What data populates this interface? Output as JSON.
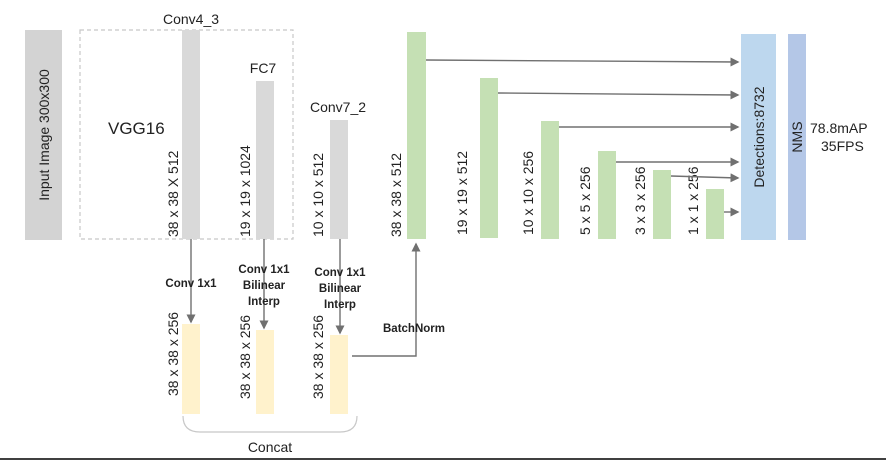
{
  "colors": {
    "gray_block": "#d3d3d3",
    "gray_bar": "#d9d9d9",
    "green": "#c5e0b4",
    "yellow": "#fff2cc",
    "blue": "#bdd7ee",
    "blue_nms": "#b4c7e7",
    "arrow": "#707070",
    "dashed": "#c8c8c8"
  },
  "input": {
    "label": "Input Image 300x300"
  },
  "backbone": {
    "name": "VGG16",
    "layers": [
      {
        "title": "Conv4_3",
        "dims": "38 x 38 X 512"
      },
      {
        "title": "FC7",
        "dims": "19 x 19  x 1024"
      },
      {
        "title": "Conv7_2",
        "dims": "10 x 10 x 512"
      }
    ]
  },
  "ops": [
    [
      "Conv 1x1"
    ],
    [
      "Conv 1x1",
      "Bilinear",
      "Interp"
    ],
    [
      "Conv 1x1",
      "Bilinear",
      "Interp"
    ]
  ],
  "fusion": {
    "dims": [
      "38 x 38 x 256",
      "38 x 38 x 256",
      "38 x 38 x 256"
    ],
    "concat_label": "Concat",
    "batchnorm_label": "BatchNorm"
  },
  "pyramid": {
    "dims": [
      "38 x 38 x 512",
      "19 x 19 x 512",
      "10 x 10 x 256",
      "5 x 5 x 256",
      "3 x 3 x 256",
      "1 x 1 x 256"
    ]
  },
  "detections": {
    "label": "Detections:8732"
  },
  "nms": {
    "label": "NMS"
  },
  "result": {
    "map": "78.8mAP",
    "fps": "35FPS"
  }
}
